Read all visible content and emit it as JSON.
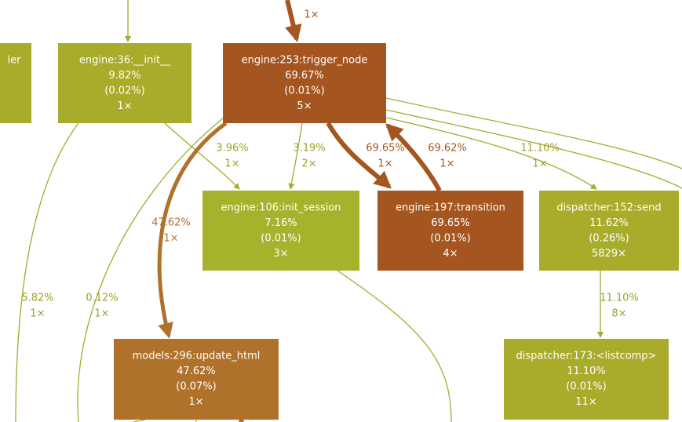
{
  "nodes": [
    {
      "lines": [
        "ler"
      ]
    },
    {
      "lines": [
        "engine:36:__init__",
        "9.82%",
        "(0.02%)",
        "1×"
      ]
    },
    {
      "lines": [
        "engine:253:trigger_node",
        "69.67%",
        "(0.01%)",
        "5×"
      ]
    },
    {
      "lines": [
        "engine:106:init_session",
        "7.16%",
        "(0.01%)",
        "3×"
      ]
    },
    {
      "lines": [
        "engine:197:transition",
        "69.65%",
        "(0.01%)",
        "4×"
      ]
    },
    {
      "lines": [
        "dispatcher:152:send",
        "11.62%",
        "(0.26%)",
        "5829×"
      ]
    },
    {
      "lines": [
        "models:296:update_html",
        "47.62%",
        "(0.07%)",
        "1×"
      ]
    },
    {
      "lines": [
        "dispatcher:173:<listcomp>",
        "11.10%",
        "(0.01%)",
        "11×"
      ]
    }
  ],
  "edge_labels": [
    {
      "lines": [
        "1×"
      ]
    },
    {
      "lines": [
        "3.96%",
        "1×"
      ]
    },
    {
      "lines": [
        "3.19%",
        "2×"
      ]
    },
    {
      "lines": [
        "69.65%",
        "1×"
      ]
    },
    {
      "lines": [
        "69.62%",
        "1×"
      ]
    },
    {
      "lines": [
        "11.10%",
        "1×"
      ]
    },
    {
      "lines": [
        "47.62%",
        "1×"
      ]
    },
    {
      "lines": [
        "5.82%",
        "1×"
      ]
    },
    {
      "lines": [
        "0.12%",
        "1×"
      ]
    },
    {
      "lines": [
        "11.10%",
        "8×"
      ]
    }
  ]
}
